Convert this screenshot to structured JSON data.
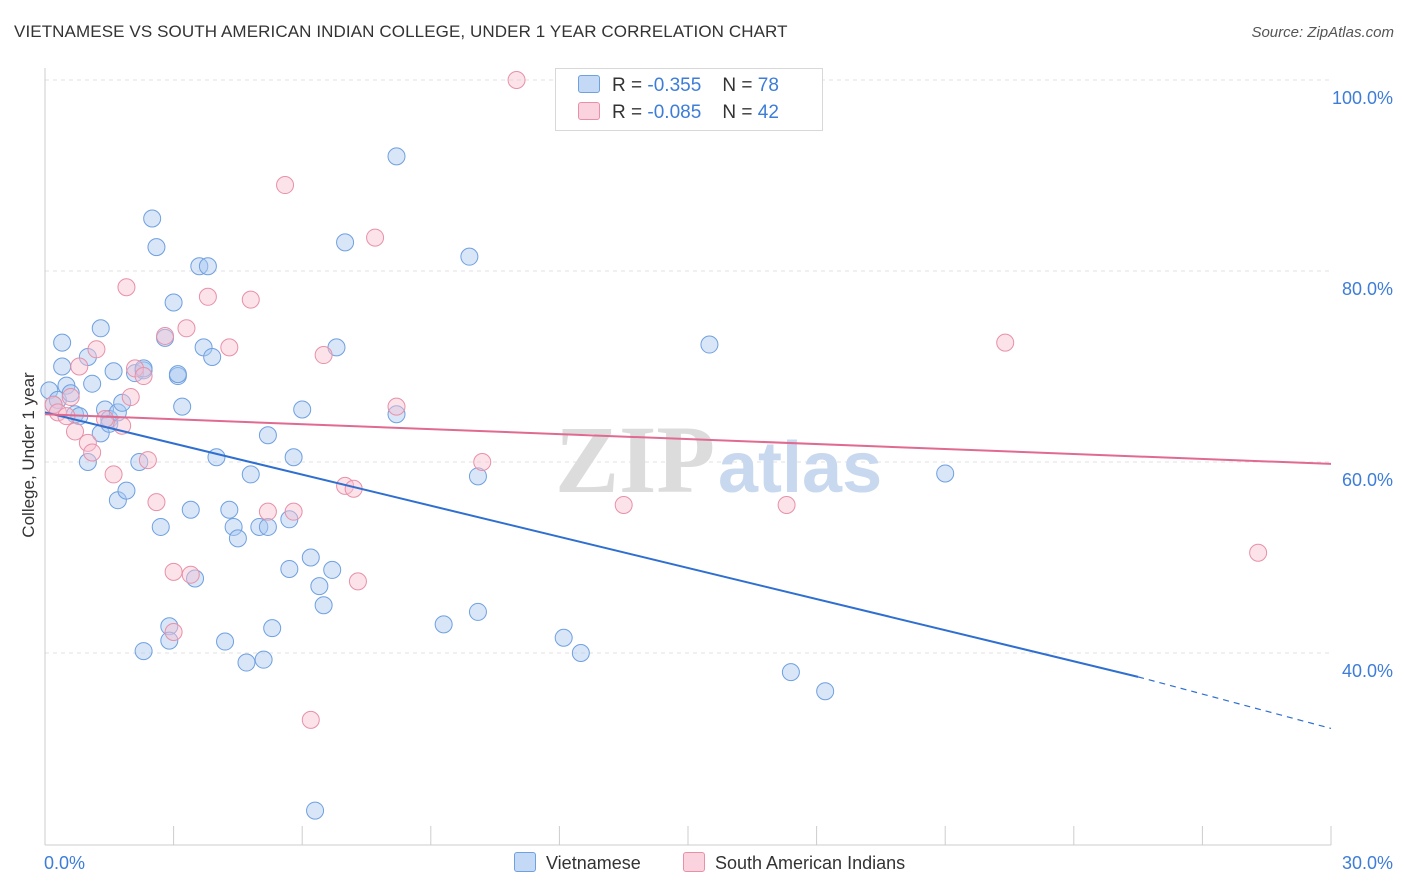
{
  "title": "VIETNAMESE VS SOUTH AMERICAN INDIAN COLLEGE, UNDER 1 YEAR CORRELATION CHART",
  "source": "Source: ZipAtlas.com",
  "watermark": {
    "zip": "ZIP",
    "atlas": "atlas"
  },
  "legend": {
    "r_label": "R =",
    "n_label": "N =",
    "rows": [
      {
        "r": "-0.355",
        "n": "78",
        "color": "#a8c8f0",
        "edge": "#6fa0e0"
      },
      {
        "r": "-0.085",
        "n": "42",
        "color": "#f8c0d0",
        "edge": "#e890a8"
      }
    ]
  },
  "bottom_legend": [
    {
      "label": "Vietnamese",
      "color": "#c3d9f5",
      "edge": "#6fa0e0"
    },
    {
      "label": "South American Indians",
      "color": "#fad3de",
      "edge": "#e890a8"
    }
  ],
  "chart_data": {
    "type": "scatter",
    "title": "VIETNAMESE VS SOUTH AMERICAN INDIAN COLLEGE, UNDER 1 YEAR CORRELATION CHART",
    "xlabel": "",
    "ylabel": "College, Under 1 year",
    "xlim": [
      0,
      30
    ],
    "ylim": [
      22,
      102
    ],
    "x_tick_labels": [
      "0.0%",
      "30.0%"
    ],
    "y_ticks": [
      40,
      60,
      80,
      100
    ],
    "y_tick_labels": [
      "40.0%",
      "60.0%",
      "80.0%",
      "100.0%"
    ],
    "grid": true,
    "legend_position": "top-center",
    "series": [
      {
        "name": "Vietnamese",
        "color": "#6fa0e0",
        "fill": "rgba(168,200,240,0.45)",
        "line_color": "#2f6fd0",
        "trend": {
          "x0": 0,
          "y0": 65.2,
          "x1": 25.5,
          "y1": 37.5,
          "dash_to_x": 30,
          "dash_to_y": 32.1
        },
        "points": [
          [
            0.1,
            67.5
          ],
          [
            0.2,
            66
          ],
          [
            0.3,
            66.5
          ],
          [
            0.4,
            72.5
          ],
          [
            0.4,
            70
          ],
          [
            0.5,
            68
          ],
          [
            0.6,
            67.2
          ],
          [
            0.7,
            65
          ],
          [
            0.8,
            64.8
          ],
          [
            1.0,
            71
          ],
          [
            1.0,
            60
          ],
          [
            1.1,
            68.2
          ],
          [
            1.3,
            74
          ],
          [
            1.3,
            63
          ],
          [
            1.4,
            65.5
          ],
          [
            1.5,
            64.5
          ],
          [
            1.5,
            64
          ],
          [
            1.6,
            69.5
          ],
          [
            1.7,
            65.2
          ],
          [
            1.7,
            56
          ],
          [
            1.8,
            66.2
          ],
          [
            1.9,
            57
          ],
          [
            2.1,
            69.3
          ],
          [
            2.2,
            60
          ],
          [
            2.3,
            69.6
          ],
          [
            2.3,
            69.8
          ],
          [
            2.3,
            40.2
          ],
          [
            2.5,
            85.5
          ],
          [
            2.6,
            82.5
          ],
          [
            2.7,
            53.2
          ],
          [
            2.8,
            73
          ],
          [
            2.9,
            42.8
          ],
          [
            2.9,
            41.3
          ],
          [
            3.0,
            76.7
          ],
          [
            3.1,
            69
          ],
          [
            3.1,
            69.2
          ],
          [
            3.2,
            65.8
          ],
          [
            3.4,
            55
          ],
          [
            3.5,
            47.8
          ],
          [
            3.6,
            80.5
          ],
          [
            3.7,
            72
          ],
          [
            3.8,
            80.5
          ],
          [
            3.9,
            71
          ],
          [
            4.0,
            60.5
          ],
          [
            4.2,
            41.2
          ],
          [
            4.3,
            55
          ],
          [
            4.4,
            53.2
          ],
          [
            4.5,
            52
          ],
          [
            4.7,
            39
          ],
          [
            4.8,
            58.7
          ],
          [
            5.0,
            53.2
          ],
          [
            5.1,
            39.3
          ],
          [
            5.2,
            53.2
          ],
          [
            5.2,
            62.8
          ],
          [
            5.3,
            42.6
          ],
          [
            5.7,
            54
          ],
          [
            5.8,
            60.5
          ],
          [
            5.7,
            48.8
          ],
          [
            6.0,
            65.5
          ],
          [
            6.2,
            50
          ],
          [
            6.3,
            23.5
          ],
          [
            6.4,
            47
          ],
          [
            6.5,
            45
          ],
          [
            6.7,
            48.7
          ],
          [
            6.8,
            72
          ],
          [
            7.0,
            83
          ],
          [
            8.2,
            65
          ],
          [
            8.2,
            92
          ],
          [
            9.3,
            43
          ],
          [
            9.9,
            81.5
          ],
          [
            10.1,
            44.3
          ],
          [
            10.1,
            58.5
          ],
          [
            12.1,
            41.6
          ],
          [
            12.5,
            40
          ],
          [
            15.5,
            72.3
          ],
          [
            17.4,
            38
          ],
          [
            18.2,
            36
          ],
          [
            21.0,
            58.8
          ]
        ]
      },
      {
        "name": "South American Indians",
        "color": "#e890a8",
        "fill": "rgba(248,192,208,0.45)",
        "line_color": "#e06a90",
        "trend": {
          "x0": 0,
          "y0": 65.0,
          "x1": 30,
          "y1": 59.8
        },
        "points": [
          [
            0.2,
            66
          ],
          [
            0.3,
            65.2
          ],
          [
            0.5,
            64.8
          ],
          [
            0.6,
            66.8
          ],
          [
            0.7,
            63.2
          ],
          [
            0.8,
            70
          ],
          [
            1.0,
            62
          ],
          [
            1.1,
            61
          ],
          [
            1.2,
            71.8
          ],
          [
            1.4,
            64.5
          ],
          [
            1.6,
            58.7
          ],
          [
            1.8,
            63.8
          ],
          [
            1.9,
            78.3
          ],
          [
            2.0,
            66.8
          ],
          [
            2.1,
            69.8
          ],
          [
            2.3,
            69
          ],
          [
            2.4,
            60.2
          ],
          [
            2.6,
            55.8
          ],
          [
            2.8,
            73.2
          ],
          [
            3.0,
            48.5
          ],
          [
            3.0,
            42.2
          ],
          [
            3.3,
            74
          ],
          [
            3.4,
            48.2
          ],
          [
            3.8,
            77.3
          ],
          [
            4.3,
            72
          ],
          [
            4.8,
            77
          ],
          [
            5.2,
            54.8
          ],
          [
            5.6,
            89
          ],
          [
            5.8,
            54.8
          ],
          [
            6.2,
            33
          ],
          [
            6.5,
            71.2
          ],
          [
            7.0,
            57.5
          ],
          [
            7.2,
            57.2
          ],
          [
            7.3,
            47.5
          ],
          [
            7.7,
            83.5
          ],
          [
            8.2,
            65.8
          ],
          [
            10.2,
            60
          ],
          [
            11.0,
            100
          ],
          [
            13.5,
            55.5
          ],
          [
            17.3,
            55.5
          ],
          [
            22.4,
            72.5
          ],
          [
            28.3,
            50.5
          ]
        ]
      }
    ]
  }
}
